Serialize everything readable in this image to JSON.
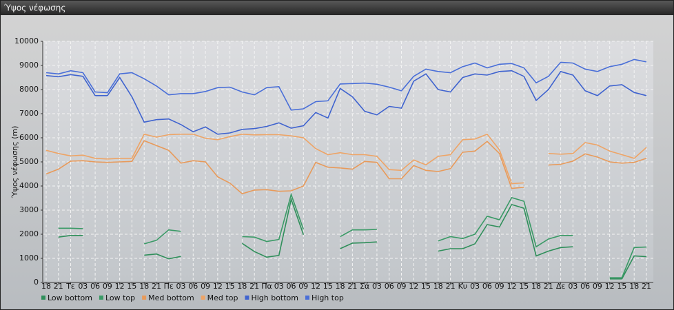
{
  "chart_data": {
    "type": "line",
    "title": "Ύψος νέφωσης",
    "ylabel": "Ύψος νέφωσης (m)",
    "categories": [
      "18",
      "21",
      "Τε",
      "03",
      "06",
      "09",
      "12",
      "15",
      "18",
      "21",
      "Πε",
      "03",
      "06",
      "09",
      "12",
      "15",
      "18",
      "21",
      "Πα",
      "03",
      "06",
      "09",
      "12",
      "15",
      "18",
      "21",
      "Σά",
      "03",
      "06",
      "09",
      "12",
      "15",
      "18",
      "21",
      "Κυ",
      "03",
      "06",
      "09",
      "12",
      "15",
      "18",
      "21",
      "Δε",
      "03",
      "06",
      "09",
      "12",
      "15",
      "18",
      "21"
    ],
    "ylim": [
      0,
      10000
    ],
    "yticks": [
      0,
      1000,
      2000,
      3000,
      4000,
      5000,
      6000,
      7000,
      8000,
      9000,
      10000
    ],
    "grid": true,
    "legend": "bottom",
    "series": [
      {
        "name": "Low bottom",
        "color": "#2f8f5a",
        "values": [
          null,
          1880,
          1950,
          1950,
          null,
          null,
          null,
          null,
          1130,
          1180,
          980,
          1080,
          null,
          null,
          null,
          null,
          1620,
          1280,
          1050,
          1120,
          3450,
          1980,
          null,
          null,
          1400,
          1630,
          1650,
          1680,
          null,
          null,
          null,
          null,
          1300,
          1400,
          1400,
          1600,
          2400,
          2300,
          3230,
          3080,
          1100,
          1300,
          1450,
          1480,
          null,
          null,
          150,
          150,
          1100,
          1070
        ]
      },
      {
        "name": "Low top",
        "color": "#3a9a66",
        "values": [
          null,
          2250,
          2250,
          2230,
          null,
          null,
          null,
          null,
          1600,
          1750,
          2180,
          2120,
          null,
          null,
          null,
          null,
          1900,
          1880,
          1700,
          1780,
          3650,
          2200,
          null,
          null,
          1900,
          2180,
          2180,
          2200,
          null,
          null,
          null,
          null,
          1720,
          1900,
          1820,
          2000,
          2750,
          2600,
          3520,
          3370,
          1480,
          1800,
          1950,
          1950,
          null,
          null,
          200,
          200,
          1450,
          1470
        ]
      },
      {
        "name": "Med bottom",
        "color": "#e89a5a",
        "values": [
          4500,
          4700,
          5030,
          5050,
          5000,
          4980,
          5000,
          5020,
          5880,
          5680,
          5480,
          4950,
          5050,
          5000,
          4380,
          4120,
          3680,
          3830,
          3850,
          3780,
          3800,
          4000,
          4980,
          4780,
          4750,
          4700,
          5020,
          4980,
          4300,
          4300,
          4850,
          4650,
          4600,
          4720,
          5400,
          5450,
          5850,
          5350,
          3900,
          3950,
          null,
          4870,
          4900,
          5030,
          5330,
          5200,
          5000,
          4950,
          4980,
          5150
        ]
      },
      {
        "name": "Med top",
        "color": "#eea466",
        "values": [
          5480,
          5350,
          5250,
          5280,
          5150,
          5120,
          5150,
          5150,
          6150,
          6030,
          6130,
          6150,
          6150,
          5980,
          5920,
          6050,
          6150,
          6120,
          6130,
          6130,
          6080,
          6000,
          5550,
          5300,
          5380,
          5300,
          5300,
          5230,
          4680,
          4650,
          5080,
          4880,
          5230,
          5300,
          5920,
          5950,
          6150,
          5500,
          4100,
          4130,
          null,
          5350,
          5320,
          5350,
          5800,
          5700,
          5450,
          5300,
          5150,
          5600
        ]
      },
      {
        "name": "High bottom",
        "color": "#3f63cf",
        "values": [
          8580,
          8530,
          8620,
          8550,
          7750,
          7750,
          8500,
          7700,
          6650,
          6750,
          6780,
          6550,
          6250,
          6450,
          6150,
          6200,
          6350,
          6380,
          6470,
          6620,
          6400,
          6500,
          7050,
          6820,
          8050,
          7700,
          7100,
          6950,
          7300,
          7230,
          8350,
          8650,
          8000,
          7900,
          8500,
          8650,
          8600,
          8750,
          8780,
          8550,
          7550,
          8000,
          8750,
          8600,
          7950,
          7750,
          8150,
          8200,
          7880,
          7750
        ]
      },
      {
        "name": "High top",
        "color": "#4a6fd8",
        "values": [
          8700,
          8650,
          8780,
          8700,
          7900,
          7870,
          8650,
          8700,
          8450,
          8150,
          7780,
          7830,
          7830,
          7920,
          8080,
          8100,
          7900,
          7780,
          8080,
          8120,
          7150,
          7200,
          7500,
          7530,
          8230,
          8250,
          8270,
          8220,
          8100,
          7950,
          8550,
          8850,
          8750,
          8700,
          8950,
          9100,
          8900,
          9050,
          9080,
          8900,
          8280,
          8550,
          9130,
          9100,
          8850,
          8750,
          8950,
          9050,
          9250,
          9150
        ]
      }
    ]
  }
}
